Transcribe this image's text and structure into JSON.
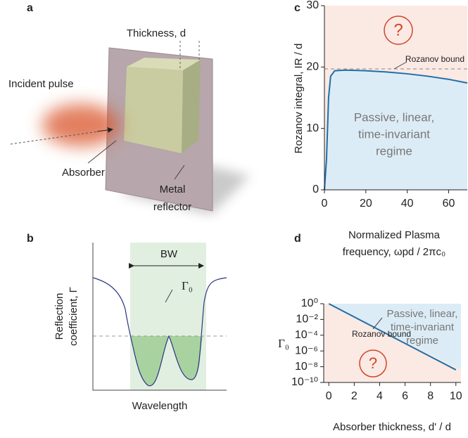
{
  "panel_a": {
    "label": "a",
    "thickness_label": "Thickness, d",
    "pulse_label": "Incident pulse",
    "absorber_label": "Absorber",
    "reflector_label": [
      "Metal",
      "reflector"
    ]
  },
  "panel_b": {
    "label": "b",
    "bandwidth_label": "BW",
    "gamma_label": "Γ₀",
    "y_label": [
      "Reflection",
      "coefficient, Γ"
    ],
    "x_label": "Wavelength"
  },
  "chart_data": [
    {
      "type": "line",
      "label": "c",
      "y_label": "Rozanov integral, IR / d",
      "x_label": [
        "Normalized Plasma",
        "frequency, ωpd / 2πc₀"
      ],
      "x": [
        0,
        1,
        2,
        3,
        5,
        10,
        20,
        30,
        40,
        50,
        60,
        69
      ],
      "series": [
        {
          "color": "#1f6fa8",
          "values": [
            0,
            5,
            15,
            18.5,
            19.4,
            19.5,
            19.4,
            19.2,
            18.9,
            18.5,
            18.0,
            17.4
          ]
        }
      ],
      "xlim": [
        0,
        69
      ],
      "ylim": [
        0,
        30
      ],
      "xticks": [
        0,
        20,
        40,
        60
      ],
      "yticks": [
        0,
        10,
        20,
        30
      ],
      "reference_line": 19.7,
      "reference_label": "Rozanov bound",
      "upper_label": "?",
      "lower_label": [
        "Passive, linear,",
        "time-invariant",
        "regime"
      ]
    },
    {
      "type": "line",
      "label": "d",
      "y_label": "Γ₀",
      "x_label": "Absorber thickness, d' / d",
      "log_y": true,
      "x": [
        0,
        10
      ],
      "series": [
        {
          "color": "#1f6fa8",
          "values": [
            1,
            4e-09
          ]
        }
      ],
      "xlim": [
        -0.4,
        10.4
      ],
      "ylim": [
        1e-10,
        1
      ],
      "xticks": [
        0,
        2,
        4,
        6,
        8,
        10
      ],
      "yticks": [
        {
          "value": 1,
          "label": "10⁰"
        },
        {
          "value": 0.01,
          "label": "10⁻²"
        },
        {
          "value": 0.0001,
          "label": "10⁻⁴"
        },
        {
          "value": 1e-06,
          "label": "10⁻⁶"
        },
        {
          "value": 1e-08,
          "label": "10⁻⁸"
        },
        {
          "value": 1e-10,
          "label": "10⁻¹⁰"
        }
      ],
      "reference_label": "Rozanov bound",
      "lower_label_mark": "?",
      "upper_label": [
        "Passive, linear,",
        "time-invariant",
        "regime"
      ]
    }
  ]
}
